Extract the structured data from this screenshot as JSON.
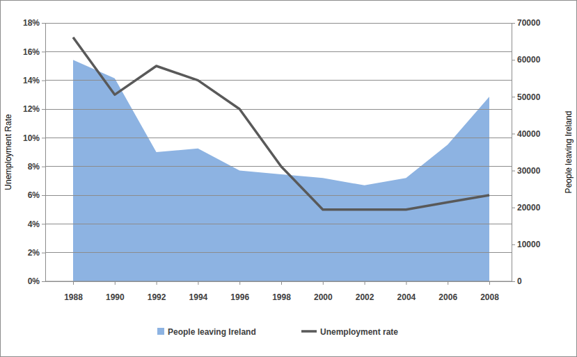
{
  "chart_data": {
    "type": "line",
    "ylabel": "Unemployment Rate",
    "y2label": "People leaving Ireland",
    "categories": [
      "1988",
      "1990",
      "1992",
      "1994",
      "1996",
      "1998",
      "2000",
      "2002",
      "2004",
      "2006",
      "2008"
    ],
    "series": [
      {
        "name": "People leaving Ireland",
        "type": "area",
        "axis": "y2",
        "color": "#8db3e2",
        "values": [
          60000,
          55000,
          35000,
          36000,
          30000,
          29000,
          28000,
          26000,
          28000,
          37000,
          50000
        ]
      },
      {
        "name": "Unemployment rate",
        "type": "line",
        "color": "#595959",
        "marker": "none",
        "values": [
          17,
          13,
          15,
          14,
          12,
          8,
          5,
          5,
          5,
          5.5,
          6
        ]
      }
    ],
    "ylim": [
      0,
      18
    ],
    "yticks": [
      {
        "value": 0,
        "label": "0%"
      },
      {
        "value": 2,
        "label": "2%"
      },
      {
        "value": 4,
        "label": "4%"
      },
      {
        "value": 6,
        "label": "6%"
      },
      {
        "value": 8,
        "label": "8%"
      },
      {
        "value": 10,
        "label": "10%"
      },
      {
        "value": 12,
        "label": "12%"
      },
      {
        "value": 14,
        "label": "14%"
      },
      {
        "value": 16,
        "label": "16%"
      },
      {
        "value": 18,
        "label": "18%"
      }
    ],
    "y2lim": [
      0,
      70000
    ],
    "y2ticks": [
      0,
      10000,
      20000,
      30000,
      40000,
      50000,
      60000,
      70000
    ],
    "grid": true,
    "legend": "bottom"
  }
}
